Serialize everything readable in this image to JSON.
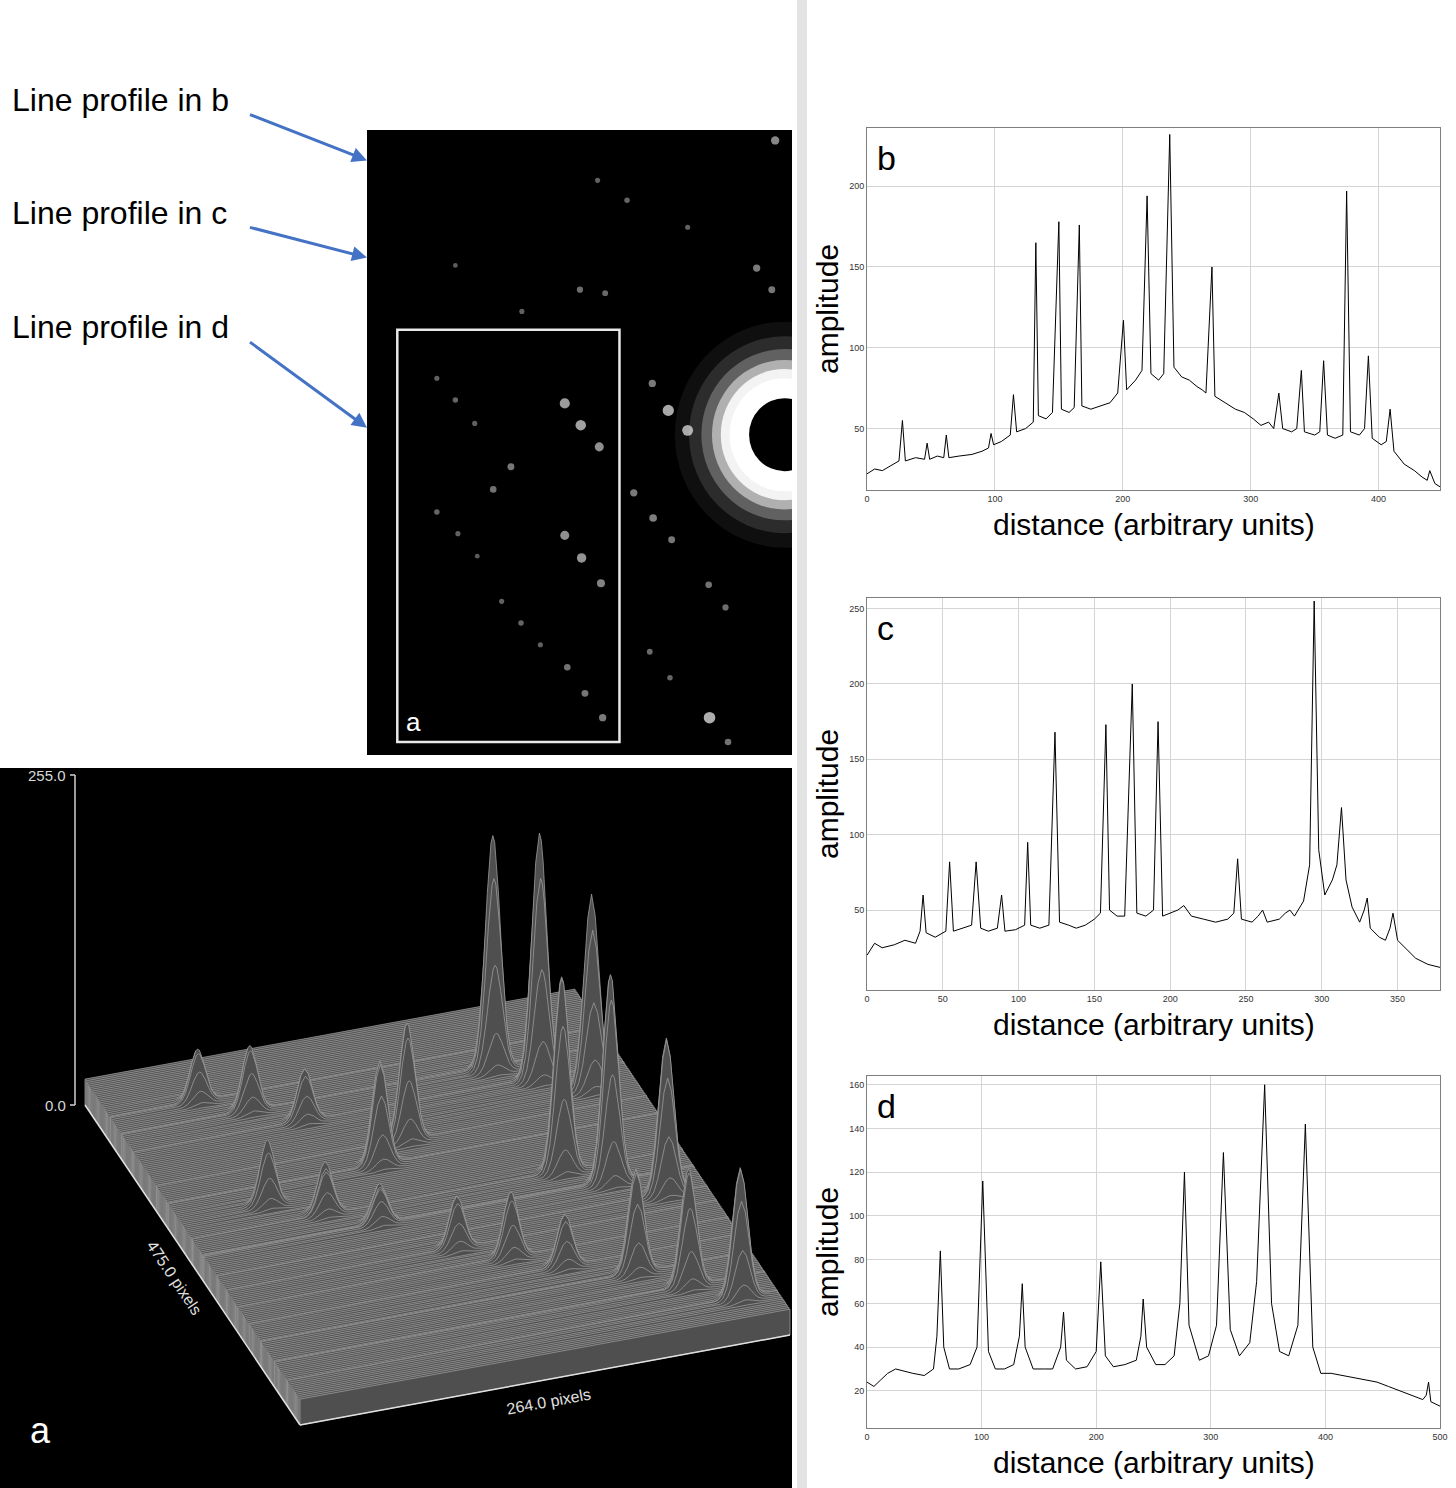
{
  "chart_data": [
    {
      "type": "diffraction_image",
      "xlim": [
        0,
        505
      ],
      "ylim": [
        720,
        0
      ],
      "spots": {
        "x": [
          485,
          274,
          309,
          381,
          105,
          253,
          283,
          463,
          481,
          184,
          83,
          105,
          128,
          235,
          254,
          276,
          171,
          150,
          83,
          108,
          131,
          235,
          255,
          278,
          160,
          183,
          206,
          238,
          259,
          280,
          358,
          381,
          339,
          317,
          340,
          362,
          406,
          426,
          336,
          360,
          407,
          429
        ],
        "y": [
          12,
          58,
          81,
          112,
          156,
          184,
          188,
          159,
          184,
          209,
          286,
          311,
          338,
          315,
          340,
          365,
          388,
          414,
          440,
          465,
          491,
          467,
          493,
          522,
          543,
          568,
          593,
          619,
          649,
          677,
          323,
          346,
          292,
          418,
          447,
          472,
          524,
          550,
          601,
          631,
          677,
          705
        ],
        "intensity": [
          150,
          60,
          70,
          60,
          50,
          90,
          80,
          120,
          110,
          60,
          60,
          70,
          60,
          200,
          210,
          170,
          110,
          100,
          70,
          60,
          50,
          170,
          180,
          140,
          60,
          70,
          60,
          100,
          110,
          120,
          230,
          220,
          120,
          120,
          130,
          110,
          100,
          90,
          80,
          70,
          240,
          100
        ]
      },
      "beam": {
        "center": [
          496,
          351
        ],
        "stop_radius": 42
      },
      "box": {
        "x": [
          36,
          300
        ],
        "y": [
          230,
          705
        ],
        "label": "a"
      },
      "profile_lines": [
        {
          "label": "Line profile in b",
          "y": 35
        },
        {
          "label": "Line profile in c",
          "y": 147
        },
        {
          "label": "Line profile in d",
          "y": 343
        }
      ]
    },
    {
      "type": "surface",
      "panel": "a",
      "xlabel": "264.0 pixels",
      "ylabel": "475.0 pixels",
      "xlim": [
        0,
        264
      ],
      "ylim": [
        0,
        475
      ],
      "zlim": [
        0,
        255
      ],
      "zticks": [
        {
          "value": 0,
          "label": "0.0"
        },
        {
          "value": 255,
          "label": "255.0"
        }
      ],
      "background": 20,
      "peaks": {
        "x": [
          47,
          69,
          92,
          199,
          218,
          240,
          135,
          114,
          47,
          72,
          95,
          199,
          219,
          242,
          124,
          147,
          170,
          202,
          223,
          244
        ],
        "y": [
          419,
          394,
          367,
          390,
          365,
          340,
          317,
          291,
          265,
          240,
          214,
          238,
          212,
          183,
          162,
          137,
          112,
          86,
          56,
          28
        ],
        "z": [
          60,
          70,
          60,
          200,
          210,
          170,
          110,
          100,
          70,
          60,
          50,
          170,
          180,
          140,
          60,
          70,
          60,
          100,
          110,
          120
        ]
      }
    },
    {
      "type": "line",
      "panel": "b",
      "xlabel": "distance (arbitrary units)",
      "ylabel": "amplitude",
      "color": "#000000",
      "grid": true,
      "xlim": [
        0,
        448
      ],
      "ylim": [
        12,
        236
      ],
      "xticks": [
        0,
        100,
        200,
        300,
        400
      ],
      "yticks": [
        50,
        100,
        150,
        200
      ],
      "x": [
        0,
        6,
        12,
        20,
        25,
        27.7,
        30,
        38,
        45,
        47,
        49,
        55,
        60,
        62,
        64,
        72,
        82,
        90,
        95,
        97,
        99,
        105,
        112,
        114.5,
        117,
        124,
        130,
        132,
        134,
        140,
        145,
        150,
        152,
        158,
        162,
        166,
        168,
        175,
        182,
        190,
        196,
        200.5,
        203,
        210,
        215,
        219,
        222,
        228,
        232,
        236.7,
        240,
        246,
        252,
        258,
        262,
        265,
        269.7,
        272,
        280,
        288,
        295,
        302,
        308,
        314,
        318,
        322,
        325,
        332,
        336,
        339.6,
        342,
        350,
        354,
        357,
        360,
        366,
        372,
        375,
        378,
        385,
        389,
        392,
        395,
        402,
        406,
        409,
        412,
        420,
        428,
        434,
        438,
        440,
        444,
        448
      ],
      "values": [
        22,
        25,
        24,
        28,
        30,
        55,
        30,
        32,
        31,
        41,
        31,
        33,
        32,
        46,
        32,
        33,
        34,
        36,
        38,
        47,
        40,
        42,
        46,
        71,
        48,
        50,
        54,
        165,
        58,
        56,
        60,
        178,
        62,
        60,
        63,
        176,
        64,
        62,
        64,
        66,
        72,
        117,
        74,
        80,
        86,
        194,
        84,
        80,
        84,
        232,
        88,
        82,
        80,
        76,
        74,
        72,
        150,
        70,
        66,
        62,
        60,
        56,
        52,
        54,
        50,
        72,
        50,
        48,
        50,
        86,
        48,
        46,
        48,
        92,
        46,
        44,
        46,
        197,
        48,
        46,
        50,
        95,
        44,
        40,
        42,
        62,
        36,
        28,
        24,
        20,
        18,
        24,
        16,
        14
      ]
    },
    {
      "type": "line",
      "panel": "c",
      "xlabel": "distance (arbitrary units)",
      "ylabel": "amplitude",
      "color": "#000000",
      "grid": true,
      "xlim": [
        0,
        378
      ],
      "ylim": [
        -3,
        257
      ],
      "xticks": [
        0,
        50,
        100,
        150,
        200,
        250,
        300,
        350
      ],
      "yticks": [
        50,
        100,
        150,
        200,
        250
      ],
      "x": [
        0,
        5,
        10,
        18,
        25,
        32,
        35,
        37,
        39,
        45,
        52,
        54.5,
        57,
        63,
        69,
        72,
        75,
        80,
        86,
        88.8,
        91,
        98,
        104,
        106,
        108,
        114,
        120,
        124,
        127,
        133,
        138,
        144,
        150,
        154,
        157.6,
        160,
        165,
        170,
        175,
        178,
        184,
        189,
        192,
        195,
        200,
        205,
        209,
        214,
        222,
        230,
        238,
        242,
        244.5,
        247,
        254,
        258,
        261,
        264,
        272,
        276,
        279,
        282,
        288,
        292,
        295,
        298,
        302,
        307,
        310,
        313,
        316,
        320,
        325,
        328,
        330,
        332,
        338,
        342,
        345,
        347,
        350,
        356,
        362,
        370,
        378
      ],
      "values": [
        20,
        28,
        25,
        27,
        30,
        28,
        36,
        60,
        35,
        32,
        36,
        82,
        36,
        38,
        40,
        82,
        38,
        36,
        38,
        60,
        36,
        37,
        40,
        95,
        40,
        38,
        40,
        168,
        42,
        40,
        38,
        40,
        44,
        48,
        173,
        50,
        46,
        46,
        200,
        48,
        46,
        50,
        175,
        46,
        48,
        50,
        53,
        46,
        44,
        42,
        44,
        48,
        84,
        44,
        42,
        46,
        50,
        42,
        44,
        48,
        50,
        46,
        56,
        80,
        255,
        90,
        60,
        70,
        80,
        118,
        70,
        52,
        42,
        50,
        58,
        38,
        32,
        30,
        38,
        48,
        30,
        24,
        18,
        14,
        12
      ]
    },
    {
      "type": "line",
      "panel": "d",
      "xlabel": "distance (arbitrary units)",
      "ylabel": "amplitude",
      "color": "#000000",
      "grid": true,
      "xlim": [
        0,
        500
      ],
      "ylim": [
        3,
        164
      ],
      "xticks": [
        0,
        100,
        200,
        300,
        400,
        500
      ],
      "yticks": [
        20,
        40,
        60,
        80,
        100,
        120,
        140,
        160
      ],
      "x": [
        0,
        6,
        12,
        18,
        25,
        32,
        40,
        50,
        58,
        61,
        64,
        67,
        72,
        80,
        90,
        96,
        101,
        106,
        112,
        120,
        128,
        133,
        135.5,
        138,
        145,
        155,
        162,
        169,
        171.5,
        174,
        182,
        192,
        200,
        204,
        208,
        215,
        225,
        235,
        239,
        241,
        244,
        252,
        260,
        268,
        273,
        277,
        281,
        290,
        298,
        305,
        311,
        317,
        325,
        334,
        340,
        347,
        353,
        360,
        368,
        376,
        382.5,
        389,
        396,
        405,
        415,
        425,
        435,
        445,
        455,
        465,
        475,
        485,
        488,
        490,
        492,
        496,
        500
      ],
      "values": [
        24,
        22,
        25,
        28,
        30,
        29,
        28,
        27,
        30,
        45,
        84,
        40,
        30,
        30,
        32,
        40,
        116,
        38,
        30,
        30,
        32,
        45,
        69,
        40,
        30,
        30,
        30,
        40,
        56,
        34,
        30,
        31,
        38,
        79,
        36,
        31,
        32,
        34,
        45,
        62,
        40,
        32,
        32,
        36,
        60,
        120,
        50,
        34,
        36,
        50,
        129,
        48,
        36,
        42,
        70,
        160,
        60,
        38,
        36,
        50,
        142,
        40,
        28,
        28,
        27,
        26,
        25,
        24,
        22,
        20,
        18,
        16,
        18,
        24,
        15,
        14,
        13
      ]
    }
  ]
}
